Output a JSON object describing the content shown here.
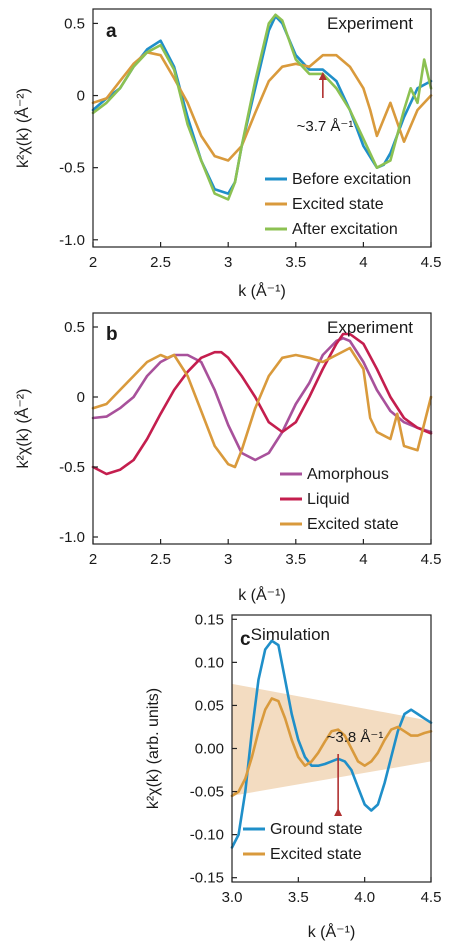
{
  "colors": {
    "blue": "#1f8fc9",
    "orange": "#d99a3c",
    "green": "#8cc152",
    "purple": "#a8519b",
    "crimson": "#c41e4e",
    "arrow": "#b03030",
    "band": "#f3dcc1"
  },
  "chart_data": [
    {
      "type": "line",
      "panel": "a",
      "title": "Experiment",
      "xlabel": "k (Å⁻¹)",
      "ylabel": "k²χ(k) (Å⁻²)",
      "xlim": [
        2,
        4.5
      ],
      "ylim": [
        -1.05,
        0.6
      ],
      "xticks": [
        "2",
        "2.5",
        "3",
        "3.5",
        "4",
        "4.5"
      ],
      "yticks": [
        "0.5",
        "0",
        "-0.5",
        "-1.0"
      ],
      "legend": "bottom-right",
      "annotation": {
        "text": "~3.7 Å⁻¹",
        "x": 3.7
      },
      "series": [
        {
          "name": "Before excitation",
          "color": "#1f8fc9",
          "x": [
            2.0,
            2.1,
            2.2,
            2.3,
            2.4,
            2.5,
            2.6,
            2.7,
            2.8,
            2.9,
            3.0,
            3.05,
            3.1,
            3.2,
            3.3,
            3.35,
            3.4,
            3.5,
            3.6,
            3.7,
            3.8,
            3.9,
            4.0,
            4.1,
            4.15,
            4.2,
            4.3,
            4.4,
            4.5
          ],
          "y": [
            -0.1,
            -0.02,
            0.05,
            0.2,
            0.32,
            0.38,
            0.2,
            -0.15,
            -0.45,
            -0.65,
            -0.68,
            -0.6,
            -0.35,
            0.05,
            0.45,
            0.55,
            0.5,
            0.28,
            0.18,
            0.18,
            0.1,
            -0.1,
            -0.35,
            -0.5,
            -0.48,
            -0.4,
            -0.15,
            0.05,
            0.1
          ]
        },
        {
          "name": "Excited state",
          "color": "#d99a3c",
          "x": [
            2.0,
            2.1,
            2.2,
            2.3,
            2.4,
            2.5,
            2.6,
            2.7,
            2.8,
            2.9,
            3.0,
            3.1,
            3.2,
            3.3,
            3.4,
            3.5,
            3.6,
            3.7,
            3.8,
            3.9,
            4.0,
            4.05,
            4.1,
            4.2,
            4.3,
            4.4,
            4.5
          ],
          "y": [
            -0.05,
            -0.02,
            0.1,
            0.22,
            0.3,
            0.28,
            0.12,
            -0.05,
            -0.28,
            -0.42,
            -0.45,
            -0.35,
            -0.12,
            0.1,
            0.2,
            0.22,
            0.2,
            0.28,
            0.28,
            0.2,
            0.05,
            -0.1,
            -0.28,
            -0.05,
            -0.32,
            -0.1,
            0.0
          ]
        },
        {
          "name": "After excitation",
          "color": "#8cc152",
          "x": [
            2.0,
            2.1,
            2.2,
            2.3,
            2.4,
            2.5,
            2.6,
            2.7,
            2.8,
            2.9,
            3.0,
            3.05,
            3.1,
            3.2,
            3.3,
            3.35,
            3.4,
            3.5,
            3.6,
            3.7,
            3.8,
            3.9,
            4.0,
            4.1,
            4.2,
            4.3,
            4.35,
            4.4,
            4.45,
            4.5
          ],
          "y": [
            -0.12,
            -0.05,
            0.05,
            0.2,
            0.3,
            0.35,
            0.18,
            -0.2,
            -0.45,
            -0.68,
            -0.72,
            -0.6,
            -0.35,
            0.1,
            0.5,
            0.56,
            0.52,
            0.25,
            0.15,
            0.15,
            0.05,
            -0.1,
            -0.3,
            -0.5,
            -0.45,
            -0.1,
            0.05,
            -0.05,
            0.25,
            0.05
          ]
        }
      ]
    },
    {
      "type": "line",
      "panel": "b",
      "title": "Experiment",
      "xlabel": "k (Å⁻¹)",
      "ylabel": "k²χ(k) (Å⁻²)",
      "xlim": [
        2,
        4.5
      ],
      "ylim": [
        -1.05,
        0.6
      ],
      "xticks": [
        "2",
        "2.5",
        "3",
        "3.5",
        "4",
        "4.5"
      ],
      "yticks": [
        "0.5",
        "0",
        "-0.5",
        "-1.0"
      ],
      "legend": "bottom-right",
      "series": [
        {
          "name": "Amorphous",
          "color": "#a8519b",
          "x": [
            2.0,
            2.1,
            2.2,
            2.3,
            2.4,
            2.5,
            2.6,
            2.7,
            2.8,
            2.9,
            3.0,
            3.1,
            3.2,
            3.3,
            3.4,
            3.5,
            3.6,
            3.7,
            3.8,
            3.85,
            3.9,
            4.0,
            4.1,
            4.2,
            4.3,
            4.4,
            4.5
          ],
          "y": [
            -0.15,
            -0.14,
            -0.08,
            0.0,
            0.15,
            0.25,
            0.3,
            0.3,
            0.25,
            0.05,
            -0.2,
            -0.4,
            -0.45,
            -0.4,
            -0.25,
            -0.05,
            0.1,
            0.3,
            0.4,
            0.42,
            0.4,
            0.25,
            0.05,
            -0.1,
            -0.18,
            -0.22,
            -0.25
          ]
        },
        {
          "name": "Liquid",
          "color": "#c41e4e",
          "x": [
            2.0,
            2.1,
            2.2,
            2.3,
            2.4,
            2.5,
            2.6,
            2.7,
            2.8,
            2.9,
            2.95,
            3.0,
            3.1,
            3.2,
            3.3,
            3.4,
            3.5,
            3.6,
            3.7,
            3.8,
            3.85,
            3.9,
            4.0,
            4.1,
            4.2,
            4.3,
            4.4,
            4.5
          ],
          "y": [
            -0.5,
            -0.55,
            -0.52,
            -0.45,
            -0.3,
            -0.12,
            0.05,
            0.18,
            0.28,
            0.32,
            0.32,
            0.28,
            0.15,
            0.0,
            -0.18,
            -0.25,
            -0.18,
            0.0,
            0.2,
            0.38,
            0.45,
            0.45,
            0.38,
            0.2,
            0.0,
            -0.15,
            -0.22,
            -0.26
          ]
        },
        {
          "name": "Excited state",
          "color": "#d99a3c",
          "x": [
            2.0,
            2.1,
            2.2,
            2.3,
            2.4,
            2.5,
            2.55,
            2.6,
            2.7,
            2.8,
            2.9,
            3.0,
            3.05,
            3.1,
            3.2,
            3.3,
            3.4,
            3.5,
            3.6,
            3.7,
            3.8,
            3.9,
            4.0,
            4.05,
            4.1,
            4.2,
            4.25,
            4.3,
            4.4,
            4.5
          ],
          "y": [
            -0.08,
            -0.05,
            0.05,
            0.15,
            0.25,
            0.3,
            0.28,
            0.3,
            0.15,
            -0.1,
            -0.35,
            -0.48,
            -0.5,
            -0.38,
            -0.08,
            0.15,
            0.28,
            0.3,
            0.28,
            0.25,
            0.3,
            0.35,
            0.2,
            -0.15,
            -0.25,
            -0.3,
            -0.12,
            -0.35,
            -0.38,
            0.0
          ]
        }
      ]
    },
    {
      "type": "line",
      "panel": "c",
      "title": "Simulation",
      "xlabel": "k (Å⁻¹)",
      "ylabel": "k²χ(k) (arb. units)",
      "xlim": [
        3.0,
        4.5
      ],
      "ylim": [
        -0.155,
        0.155
      ],
      "xticks": [
        "3.0",
        "3.5",
        "4.0",
        "4.5"
      ],
      "yticks": [
        "0.15",
        "0.10",
        "0.05",
        "0.00",
        "-0.05",
        "-0.10",
        "-0.15"
      ],
      "legend": "bottom-right",
      "annotation": {
        "text": "~3.8 Å⁻¹",
        "x": 3.8
      },
      "band": {
        "x": [
          3.0,
          4.5
        ],
        "upper": [
          0.075,
          0.032
        ],
        "lower": [
          -0.055,
          -0.015
        ]
      },
      "series": [
        {
          "name": "Ground state",
          "color": "#1f8fc9",
          "x": [
            3.0,
            3.05,
            3.1,
            3.15,
            3.2,
            3.25,
            3.3,
            3.35,
            3.4,
            3.45,
            3.5,
            3.55,
            3.6,
            3.65,
            3.7,
            3.75,
            3.8,
            3.85,
            3.9,
            3.95,
            4.0,
            4.05,
            4.1,
            4.15,
            4.2,
            4.25,
            4.3,
            4.35,
            4.4,
            4.45,
            4.5
          ],
          "y": [
            -0.115,
            -0.1,
            -0.05,
            0.02,
            0.08,
            0.115,
            0.125,
            0.12,
            0.08,
            0.04,
            0.01,
            -0.01,
            -0.02,
            -0.02,
            -0.018,
            -0.015,
            -0.012,
            -0.015,
            -0.025,
            -0.045,
            -0.065,
            -0.072,
            -0.065,
            -0.04,
            -0.01,
            0.02,
            0.04,
            0.045,
            0.04,
            0.035,
            0.03
          ]
        },
        {
          "name": "Excited state",
          "color": "#d99a3c",
          "x": [
            3.0,
            3.05,
            3.1,
            3.15,
            3.2,
            3.25,
            3.3,
            3.35,
            3.4,
            3.45,
            3.5,
            3.55,
            3.6,
            3.65,
            3.7,
            3.75,
            3.8,
            3.85,
            3.9,
            3.95,
            4.0,
            4.05,
            4.1,
            4.15,
            4.2,
            4.25,
            4.3,
            4.35,
            4.4,
            4.45,
            4.5
          ],
          "y": [
            -0.055,
            -0.05,
            -0.035,
            -0.01,
            0.02,
            0.045,
            0.058,
            0.055,
            0.035,
            0.01,
            -0.01,
            -0.02,
            -0.015,
            -0.005,
            0.008,
            0.02,
            0.022,
            0.015,
            0.0,
            -0.015,
            -0.02,
            -0.015,
            -0.005,
            0.01,
            0.022,
            0.025,
            0.02,
            0.015,
            0.015,
            0.018,
            0.02
          ]
        }
      ]
    }
  ]
}
